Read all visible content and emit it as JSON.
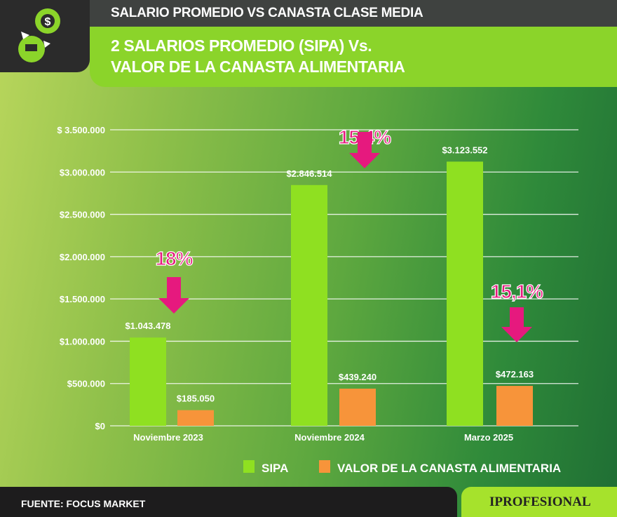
{
  "header": {
    "title": "SALARIO PROMEDIO VS CANASTA CLASE MEDIA",
    "subtitle_line1": "2 SALARIOS PROMEDIO (SIPA) Vs.",
    "subtitle_line2": "VALOR DE LA CANASTA ALIMENTARIA",
    "icon": "gear-dollar-cart-icon"
  },
  "footer": {
    "source": "FUENTE: FOCUS MARKET",
    "brand": "IPROFESIONAL"
  },
  "colors": {
    "sipa": "#8fe021",
    "canasta": "#f7943a",
    "arrow": "#e6197e"
  },
  "chart_data": {
    "type": "bar",
    "title": "",
    "categories": [
      "Noviembre 2023",
      "Noviembre 2024",
      "Marzo 2025"
    ],
    "series": [
      {
        "name": "SIPA",
        "values": [
          1043478,
          2846514,
          3123552
        ],
        "labels": [
          "$1.043.478",
          "$2.846.514",
          "$3.123.552"
        ]
      },
      {
        "name": "VALOR DE LA CANASTA ALIMENTARIA",
        "values": [
          185050,
          439240,
          472163
        ],
        "labels": [
          "$185.050",
          "$439.240",
          "$472.163"
        ]
      }
    ],
    "ylim": [
      0,
      3500000
    ],
    "yticks": [
      "$0",
      "$500.000",
      "$1.000.000",
      "$1.500.000",
      "$2.000.000",
      "$2.500.000",
      "$3.000.000",
      "$ 3.500.000"
    ],
    "annotations": [
      "18%",
      "15,4%",
      "15,1%"
    ],
    "grid": true,
    "legend": "bottom"
  }
}
